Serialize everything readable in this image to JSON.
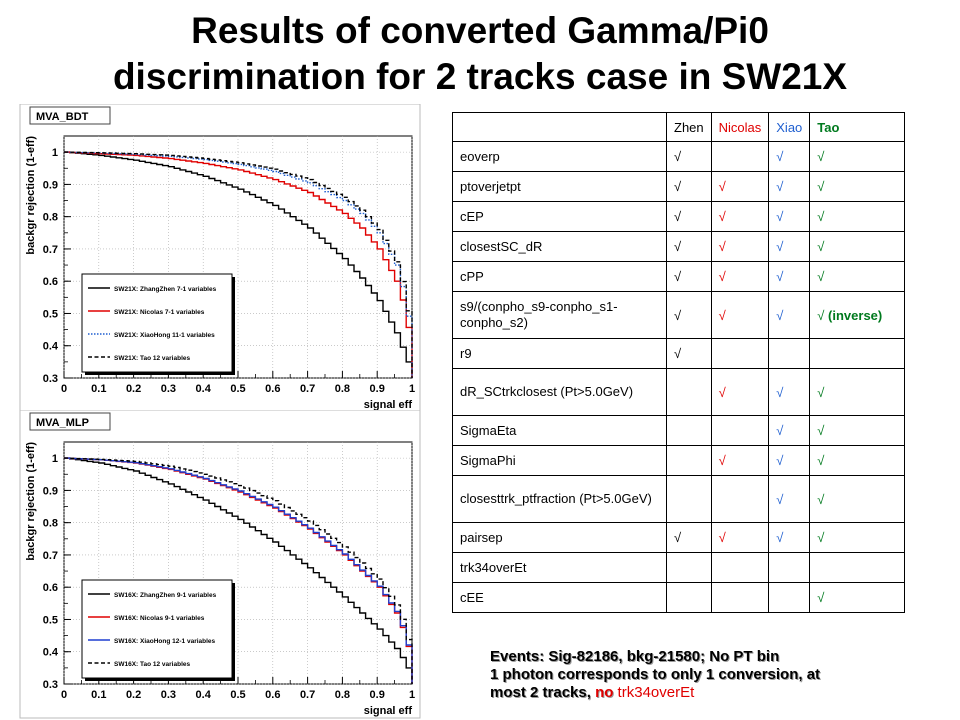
{
  "title_line1": "Results of converted Gamma/Pi0",
  "title_line2": "discrimination for 2 tracks case in SW21X",
  "colors": {
    "zhen": "#000000",
    "nicolas": "#e00000",
    "xiao": "#1f5fd0",
    "tao": "#007a1e"
  },
  "chart_data": [
    {
      "type": "line",
      "frame_title": "MVA_BDT",
      "xlabel": "signal eff",
      "ylabel": "backgr rejection (1-eff)",
      "xlim": [
        0,
        1
      ],
      "ylim": [
        0.3,
        1.05
      ],
      "x_ticks": [
        "0",
        "0.1",
        "0.2",
        "0.3",
        "0.4",
        "0.5",
        "0.6",
        "0.7",
        "0.8",
        "0.9",
        "1"
      ],
      "y_ticks": [
        "0.3",
        "0.4",
        "0.5",
        "0.6",
        "0.7",
        "0.8",
        "0.9",
        "1"
      ],
      "grid": true,
      "legend_position": "bottom-left",
      "series": [
        {
          "name": "SW21X: ZhangZhen 7-1 variables",
          "color": "#000000",
          "style": "solid",
          "x": [
            0,
            0.1,
            0.2,
            0.3,
            0.4,
            0.5,
            0.6,
            0.7,
            0.8,
            0.85,
            0.9,
            0.95,
            0.98,
            1.0
          ],
          "y": [
            1.0,
            0.99,
            0.975,
            0.955,
            0.925,
            0.885,
            0.835,
            0.765,
            0.67,
            0.61,
            0.54,
            0.44,
            0.36,
            0.3
          ]
        },
        {
          "name": "SW21X: Nicolas 7-1 variables",
          "color": "#e00000",
          "style": "solid",
          "x": [
            0,
            0.1,
            0.2,
            0.3,
            0.4,
            0.5,
            0.6,
            0.7,
            0.8,
            0.85,
            0.9,
            0.95,
            0.97,
            0.99,
            1.0
          ],
          "y": [
            1.0,
            0.995,
            0.99,
            0.98,
            0.965,
            0.945,
            0.915,
            0.875,
            0.81,
            0.765,
            0.7,
            0.6,
            0.53,
            0.42,
            0.3
          ]
        },
        {
          "name": "SW21X: XiaoHong 11-1 variables",
          "color": "#1f5fd0",
          "style": "dotted",
          "x": [
            0,
            0.1,
            0.2,
            0.3,
            0.4,
            0.5,
            0.6,
            0.7,
            0.8,
            0.85,
            0.9,
            0.95,
            0.98,
            1.0
          ],
          "y": [
            1.0,
            0.997,
            0.993,
            0.987,
            0.977,
            0.962,
            0.94,
            0.905,
            0.85,
            0.81,
            0.75,
            0.65,
            0.53,
            0.3
          ]
        },
        {
          "name": "SW21X: Tao 12 variables",
          "color": "#000000",
          "style": "dashed",
          "x": [
            0,
            0.1,
            0.2,
            0.3,
            0.4,
            0.5,
            0.6,
            0.7,
            0.8,
            0.85,
            0.9,
            0.95,
            0.98,
            1.0
          ],
          "y": [
            1.0,
            0.998,
            0.995,
            0.99,
            0.98,
            0.967,
            0.947,
            0.915,
            0.86,
            0.82,
            0.76,
            0.66,
            0.55,
            0.3
          ]
        }
      ]
    },
    {
      "type": "line",
      "frame_title": "MVA_MLP",
      "xlabel": "signal eff",
      "ylabel": "backgr rejection (1-eff)",
      "xlim": [
        0,
        1
      ],
      "ylim": [
        0.3,
        1.05
      ],
      "x_ticks": [
        "0",
        "0.1",
        "0.2",
        "0.3",
        "0.4",
        "0.5",
        "0.6",
        "0.7",
        "0.8",
        "0.9",
        "1"
      ],
      "y_ticks": [
        "0.3",
        "0.4",
        "0.5",
        "0.6",
        "0.7",
        "0.8",
        "0.9",
        "1"
      ],
      "grid": true,
      "legend_position": "bottom-left",
      "series": [
        {
          "name": "SW16X: ZhangZhen 9-1 variables",
          "color": "#000000",
          "style": "solid",
          "x": [
            0,
            0.1,
            0.2,
            0.3,
            0.4,
            0.5,
            0.6,
            0.7,
            0.8,
            0.9,
            0.95,
            0.98,
            1.0
          ],
          "y": [
            1.0,
            0.985,
            0.96,
            0.92,
            0.87,
            0.81,
            0.74,
            0.66,
            0.57,
            0.47,
            0.41,
            0.36,
            0.3
          ]
        },
        {
          "name": "SW16X: Nicolas 9-1 variables",
          "color": "#e00000",
          "style": "solid",
          "x": [
            0,
            0.1,
            0.2,
            0.3,
            0.4,
            0.5,
            0.6,
            0.7,
            0.8,
            0.9,
            0.95,
            0.98,
            1.0
          ],
          "y": [
            1.0,
            0.995,
            0.985,
            0.965,
            0.935,
            0.895,
            0.845,
            0.78,
            0.7,
            0.6,
            0.52,
            0.44,
            0.3
          ]
        },
        {
          "name": "SW16X: XiaoHong 12-1 variables",
          "color": "#1f3fd0",
          "style": "solid",
          "x": [
            0,
            0.1,
            0.2,
            0.3,
            0.4,
            0.5,
            0.6,
            0.7,
            0.8,
            0.9,
            0.95,
            0.98,
            1.0
          ],
          "y": [
            1.0,
            0.995,
            0.986,
            0.967,
            0.937,
            0.898,
            0.848,
            0.783,
            0.703,
            0.603,
            0.525,
            0.445,
            0.3
          ]
        },
        {
          "name": "SW16X: Tao 12 variables",
          "color": "#000000",
          "style": "dashed",
          "x": [
            0,
            0.1,
            0.2,
            0.3,
            0.4,
            0.5,
            0.6,
            0.7,
            0.8,
            0.9,
            0.95,
            0.98,
            1.0
          ],
          "y": [
            1.0,
            0.996,
            0.99,
            0.975,
            0.95,
            0.915,
            0.868,
            0.805,
            0.725,
            0.625,
            0.545,
            0.465,
            0.3
          ]
        }
      ]
    }
  ],
  "table": {
    "headers": {
      "var": "",
      "zhen": "Zhen",
      "nicolas": "Nicolas",
      "xiao": "Xiao",
      "tao": "Tao"
    },
    "check": "√",
    "rows": [
      {
        "var": "eoverp",
        "zhen": "√",
        "nicolas": "",
        "xiao": "√",
        "tao": "√"
      },
      {
        "var": "ptoverjetpt",
        "zhen": "√",
        "nicolas": "√",
        "xiao": "√",
        "tao": "√"
      },
      {
        "var": "cEP",
        "zhen": "√",
        "nicolas": "√",
        "xiao": "√",
        "tao": "√"
      },
      {
        "var": "closestSC_dR",
        "zhen": "√",
        "nicolas": "√",
        "xiao": "√",
        "tao": "√"
      },
      {
        "var": "cPP",
        "zhen": "√",
        "nicolas": "√",
        "xiao": "√",
        "tao": "√"
      },
      {
        "var": "s9/(conpho_s9-conpho_s1-conpho_s2)",
        "zhen": "√",
        "nicolas": "√",
        "xiao": "√",
        "tao": "√",
        "tao_note": " (inverse)"
      },
      {
        "var": "r9",
        "zhen": "√",
        "nicolas": "",
        "xiao": "",
        "tao": ""
      },
      {
        "var": "dR_SCtrkclosest (Pt>5.0GeV)",
        "zhen": "",
        "nicolas": "√",
        "xiao": "√",
        "tao": "√"
      },
      {
        "var": "SigmaEta",
        "zhen": "",
        "nicolas": "",
        "xiao": "√",
        "tao": "√"
      },
      {
        "var": "SigmaPhi",
        "zhen": "",
        "nicolas": "√",
        "xiao": "√",
        "tao": "√"
      },
      {
        "var": "closesttrk_ptfraction (Pt>5.0GeV)",
        "zhen": "",
        "nicolas": "",
        "xiao": "√",
        "tao": "√"
      },
      {
        "var": "pairsep",
        "zhen": "√",
        "nicolas": "√",
        "xiao": "√",
        "tao": "√"
      },
      {
        "var": "trk34overEt",
        "zhen": "",
        "nicolas": "",
        "xiao": "",
        "tao": ""
      },
      {
        "var": "cEE",
        "zhen": "",
        "nicolas": "",
        "xiao": "",
        "tao": "√"
      }
    ]
  },
  "notes": {
    "line1": "Events: Sig-82186, bkg-21580; No PT bin",
    "line2": "1 photon corresponds to only  1 conversion, at",
    "line3_a": "most 2 tracks, ",
    "line3_b": "no",
    "line3_c": " trk34overEt"
  }
}
